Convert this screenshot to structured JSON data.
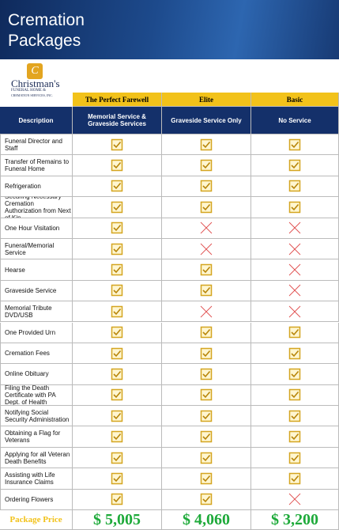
{
  "header": {
    "title_lines": [
      "Cremation",
      "Packages"
    ]
  },
  "logo": {
    "name": "Christman's",
    "line1": "FUNERAL HOME &",
    "line2": "CREMATION SERVICES, INC."
  },
  "table": {
    "description_header": "Description",
    "packages": [
      {
        "name": "The Perfect Farewell",
        "subtitle": "Memorial Service & Graveside Services",
        "price": "$ 5,005"
      },
      {
        "name": "Elite",
        "subtitle": "Graveside Service Only",
        "price": "$ 4,060"
      },
      {
        "name": "Basic",
        "subtitle": "No Service",
        "price": "$ 3,200"
      }
    ],
    "rows": [
      {
        "label": "Funeral Director and Staff",
        "included": [
          true,
          true,
          true
        ]
      },
      {
        "label": "Transfer of Remains to Funeral Home",
        "included": [
          true,
          true,
          true
        ]
      },
      {
        "label": "Refrigeration",
        "included": [
          true,
          true,
          true
        ]
      },
      {
        "label": "Securing Necessary Cremation Authorization from Next of Kin",
        "included": [
          true,
          true,
          true
        ]
      },
      {
        "label": "One Hour Visitation",
        "included": [
          true,
          false,
          false
        ]
      },
      {
        "label": "Funeral/Memorial Service",
        "included": [
          true,
          false,
          false
        ]
      },
      {
        "label": "Hearse",
        "included": [
          true,
          true,
          false
        ]
      },
      {
        "label": "Graveside Service",
        "included": [
          true,
          true,
          false
        ]
      },
      {
        "label": "Memorial Tribute DVD/USB",
        "included": [
          true,
          false,
          false
        ]
      },
      {
        "label": "One Provided Urn",
        "included": [
          true,
          true,
          true
        ]
      },
      {
        "label": "Cremation Fees",
        "included": [
          true,
          true,
          true
        ]
      },
      {
        "label": "Online Obituary",
        "included": [
          true,
          true,
          true
        ]
      },
      {
        "label": "Filing the Death Certificate with PA Dept. of Health",
        "included": [
          true,
          true,
          true
        ]
      },
      {
        "label": "Notifying Social Security Administration",
        "included": [
          true,
          true,
          true
        ]
      },
      {
        "label": "Obtaining a Flag for Veterans",
        "included": [
          true,
          true,
          true
        ]
      },
      {
        "label": "Applying for all Veteran Death Benefits",
        "included": [
          true,
          true,
          true
        ]
      },
      {
        "label": "Assisting with Life Insurance Claims",
        "included": [
          true,
          true,
          true
        ]
      },
      {
        "label": "Ordering Flowers",
        "included": [
          true,
          true,
          false
        ]
      }
    ],
    "price_label": "Package Price"
  }
}
